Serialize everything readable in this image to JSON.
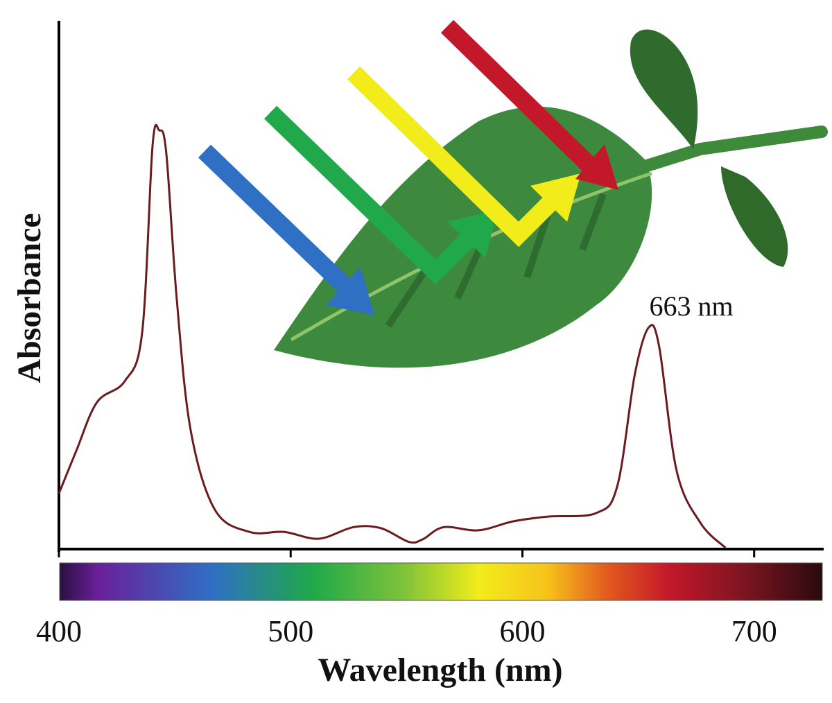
{
  "chart_data": {
    "type": "line",
    "x_label": "Wavelength (nm)",
    "y_label": "Absorbance",
    "annotations": [
      "663 nm"
    ],
    "x": [
      400,
      407.5,
      416.4,
      428.4,
      435.9,
      440.4,
      443.3,
      446.3,
      450.8,
      456.8,
      467.3,
      482.2,
      497.2,
      512.1,
      527.1,
      539,
      551,
      557,
      566,
      581,
      596,
      611,
      632,
      641,
      648.5,
      654.5,
      659,
      666.6,
      677,
      687.6
    ],
    "values": [
      0.103,
      0.184,
      0.276,
      0.316,
      0.408,
      0.763,
      0.792,
      0.75,
      0.474,
      0.224,
      0.072,
      0.03,
      0.03,
      0.017,
      0.039,
      0.037,
      0.011,
      0.016,
      0.039,
      0.033,
      0.05,
      0.059,
      0.066,
      0.118,
      0.329,
      0.418,
      0.382,
      0.145,
      0.046,
      0
    ],
    "color": "#6b1a1f",
    "xlim": [
      400,
      730
    ],
    "ylim": [
      0,
      1
    ],
    "xticks": [
      400,
      500,
      600,
      700
    ]
  }
}
